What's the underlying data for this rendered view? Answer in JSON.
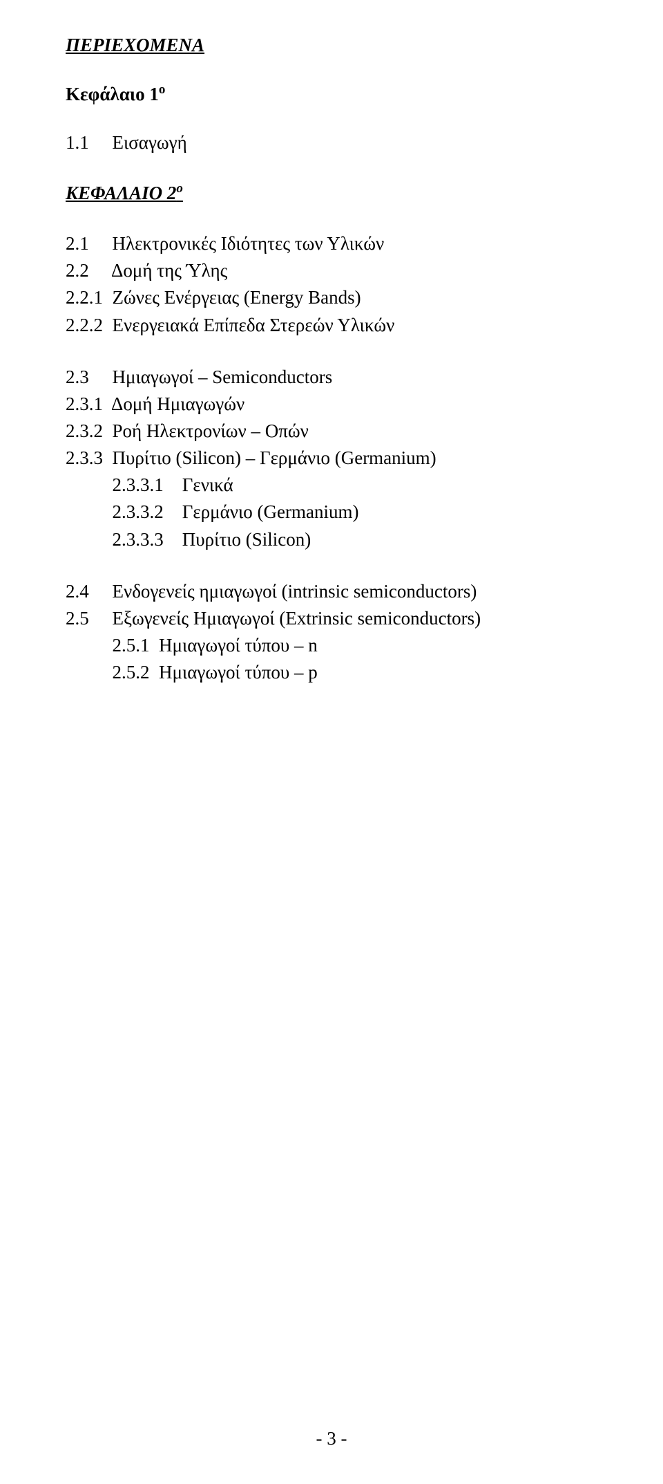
{
  "header": {
    "contents_title": "ΠΕΡΙΕΧΟΜΕΝΑ",
    "chapter1_prefix": "Κεφάλαιο 1",
    "chapter1_super": "ο",
    "chapter2_prefix": "ΚΕΦΑΛΑΙΟ 2",
    "chapter2_super": "ο"
  },
  "toc": {
    "line_1_1": "1.1     Εισαγωγή",
    "line_2_1": "2.1     Ηλεκτρονικές Ιδιότητες των Υλικών",
    "line_2_2": "2.2     Δομή της Ύλης",
    "line_2_2_1": "2.2.1  Ζώνες Ενέργειας (Energy Bands)",
    "line_2_2_2": "2.2.2  Ενεργειακά Επίπεδα Στερεών Υλικών",
    "line_2_3": "2.3     Ημιαγωγοί – Semiconductors",
    "line_2_3_1": "2.3.1  Δομή Ημιαγωγών",
    "line_2_3_2": "2.3.2  Ροή Ηλεκτρονίων – Οπών",
    "line_2_3_3": "2.3.3  Πυρίτιο (Silicon) – Γερμάνιο (Germanium)",
    "line_2_3_3_1": "          2.3.3.1    Γενικά",
    "line_2_3_3_2": "          2.3.3.2    Γερμάνιο (Germanium)",
    "line_2_3_3_3": "          2.3.3.3    Πυρίτιο (Silicon)",
    "line_2_4": "2.4     Ενδογενείς ημιαγωγοί (intrinsic semiconductors)",
    "line_2_5": "2.5     Εξωγενείς Ημιαγωγοί (Extrinsic semiconductors)",
    "line_2_5_1": "          2.5.1  Ημιαγωγοί τύπου – n",
    "line_2_5_2": "          2.5.2  Ημιαγωγοί τύπου – p"
  },
  "footer": {
    "page_number": "- 3 -"
  }
}
